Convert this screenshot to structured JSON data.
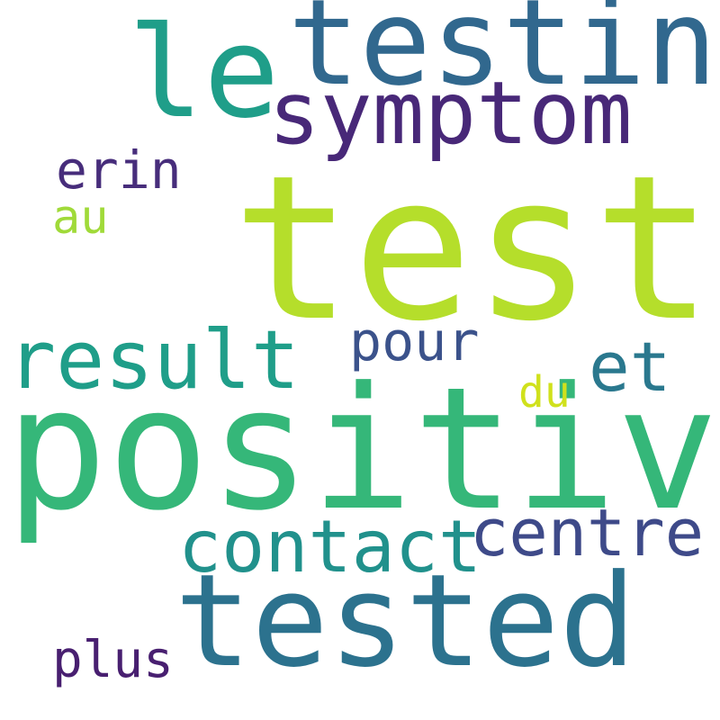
{
  "words": [
    {
      "id": "test",
      "text": "test",
      "color": "#b5de2b"
    },
    {
      "id": "positive",
      "text": "positive",
      "color": "#35b779"
    },
    {
      "id": "tested",
      "text": "tested",
      "color": "#2c728e"
    },
    {
      "id": "testing",
      "text": "testing",
      "color": "#31688e"
    },
    {
      "id": "le",
      "text": "le",
      "color": "#1f9e89"
    },
    {
      "id": "symptom",
      "text": "symptom",
      "color": "#482878"
    },
    {
      "id": "result",
      "text": "result",
      "color": "#1f9e89"
    },
    {
      "id": "contact",
      "text": "contact",
      "color": "#21918c"
    },
    {
      "id": "centre",
      "text": "centre",
      "color": "#3e4a89"
    },
    {
      "id": "et",
      "text": "et",
      "color": "#2a788e"
    },
    {
      "id": "pour",
      "text": "pour",
      "color": "#3b528b"
    },
    {
      "id": "erin",
      "text": "erin",
      "color": "#472d7b"
    },
    {
      "id": "au",
      "text": "au",
      "color": "#a0da39"
    },
    {
      "id": "du",
      "text": "du",
      "color": "#d0e11c"
    },
    {
      "id": "plus",
      "text": "plus",
      "color": "#481f70"
    }
  ]
}
